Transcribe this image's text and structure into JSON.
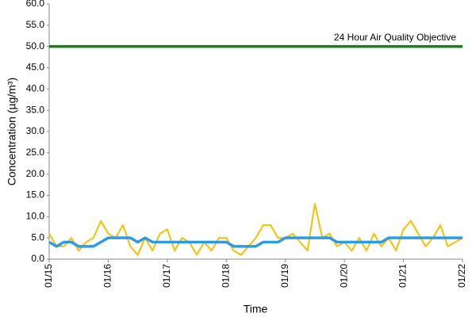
{
  "chart_data": {
    "type": "line",
    "x_label": "Time",
    "y_label": "Concentration (µg/m³)",
    "categories": [
      "01/15",
      null,
      null,
      null,
      null,
      null,
      null,
      null,
      "01/16",
      null,
      null,
      null,
      null,
      null,
      null,
      null,
      "01/17",
      null,
      null,
      null,
      null,
      null,
      null,
      null,
      "01/18",
      null,
      null,
      null,
      null,
      null,
      null,
      null,
      "01/19",
      null,
      null,
      null,
      null,
      null,
      null,
      null,
      "01/20",
      null,
      null,
      null,
      null,
      null,
      null,
      null,
      "01/21",
      null,
      null,
      null,
      null,
      null,
      null,
      null,
      "01/22"
    ],
    "series": [
      {
        "color": "#f0c419",
        "values": [
          6,
          3,
          3,
          5,
          2,
          4,
          5,
          9,
          6,
          5,
          8,
          3,
          1,
          5,
          2,
          6,
          7,
          2,
          5,
          4,
          1,
          4,
          2,
          5,
          5,
          2,
          1,
          3,
          5,
          8,
          8,
          5,
          5,
          6,
          4,
          2,
          13,
          5,
          6,
          3,
          4,
          2,
          5,
          2,
          6,
          3,
          5,
          2,
          7,
          9,
          6,
          3,
          5,
          8,
          3,
          4,
          5
        ]
      },
      {
        "color": "#2e9be0",
        "values": [
          4,
          3,
          4,
          4,
          3,
          3,
          3,
          4,
          5,
          5,
          5,
          5,
          4,
          5,
          4,
          4,
          4,
          4,
          4,
          4,
          4,
          4,
          4,
          4,
          4,
          3,
          3,
          3,
          3,
          4,
          4,
          4,
          5,
          5,
          5,
          5,
          5,
          5,
          5,
          4,
          4,
          4,
          4,
          4,
          4,
          4,
          5,
          5,
          5,
          5,
          5,
          5,
          5,
          5,
          5,
          5,
          5
        ]
      }
    ],
    "objective": {
      "value": 50,
      "label": "24 Hour Air Quality Objective",
      "color": "#1e7a1e"
    },
    "ylim": [
      0,
      60
    ],
    "yticks": [
      {
        "value": 0,
        "label": "0.0"
      },
      {
        "value": 5,
        "label": "5.0"
      },
      {
        "value": 10,
        "label": "10.0"
      },
      {
        "value": 15,
        "label": "15.0"
      },
      {
        "value": 20,
        "label": "20.0"
      },
      {
        "value": 25,
        "label": "25.0"
      },
      {
        "value": 30,
        "label": "30.0"
      },
      {
        "value": 35,
        "label": "35.0"
      },
      {
        "value": 40,
        "label": "40.0"
      },
      {
        "value": 45,
        "label": "45.0"
      },
      {
        "value": 50,
        "label": "50.0"
      },
      {
        "value": 55,
        "label": "55.0"
      },
      {
        "value": 60,
        "label": "60.0"
      }
    ],
    "grid": false
  }
}
